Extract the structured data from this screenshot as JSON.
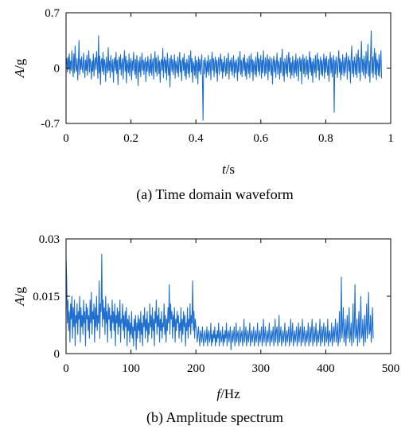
{
  "chart_data": [
    {
      "type": "line",
      "caption": "(a) Time domain waveform",
      "xlabel_italic": "t",
      "xlabel_unit": "/s",
      "ylabel_italic": "A",
      "ylabel_unit": "/g",
      "xlim": [
        0,
        1
      ],
      "ylim": [
        -0.7,
        0.7
      ],
      "x_ticks": [
        0,
        0.2,
        0.4,
        0.6,
        0.8,
        1
      ],
      "x_tick_labels": [
        "0",
        "0.2",
        "0.4",
        "0.6",
        "0.8",
        "1"
      ],
      "y_ticks": [
        -0.7,
        0,
        0.7
      ],
      "y_tick_labels": [
        "-0.7",
        "0",
        "0.7"
      ],
      "grid": false,
      "line_color": "#1f6fcf",
      "series": [
        {
          "x_start": 0,
          "x_step": 0.002,
          "values": [
            0.08,
            0.12,
            -0.05,
            0.14,
            -0.02,
            0.18,
            -0.07,
            0.09,
            -0.03,
            0.22,
            0.05,
            -0.11,
            0.18,
            -0.06,
            0.28,
            0.03,
            -0.04,
            0.12,
            -0.15,
            0.08,
            0.35,
            -0.08,
            0.11,
            -0.02,
            0.14,
            0.01,
            -0.06,
            0.19,
            0.05,
            -0.12,
            0.1,
            -0.03,
            0.16,
            -0.09,
            0.06,
            0.22,
            -0.05,
            0.12,
            0.03,
            -0.14,
            0.09,
            -0.04,
            0.18,
            -0.1,
            0.07,
            0.13,
            -0.02,
            0.21,
            0.06,
            -0.13,
            0.41,
            -0.06,
            0.15,
            -0.21,
            0.08,
            0.12,
            -0.04,
            0.2,
            -0.08,
            0.11,
            0.05,
            -0.17,
            0.14,
            0.02,
            -0.06,
            0.26,
            -0.03,
            0.09,
            -0.12,
            0.16,
            0.04,
            -0.05,
            0.11,
            -0.18,
            0.07,
            0.13,
            -0.03,
            0.2,
            -0.07,
            0.1,
            -0.21,
            0.06,
            0.14,
            -0.02,
            0.17,
            -0.09,
            0.05,
            0.12,
            -0.14,
            0.08,
            0.22,
            -0.04,
            0.15,
            -0.19,
            0.1,
            0.03,
            -0.06,
            0.18,
            -0.1,
            0.06,
            0.12,
            -0.15,
            0.09,
            -0.03,
            0.2,
            0.05,
            -0.08,
            0.11,
            -0.13,
            0.16,
            0.04,
            -0.22,
            0.09,
            -0.05,
            0.14,
            -0.11,
            0.07,
            0.19,
            -0.03,
            0.1,
            -0.08,
            0.06,
            0.13,
            -0.17,
            0.08,
            -0.04,
            0.15,
            0.02,
            -0.1,
            0.11,
            -0.06,
            0.18,
            -0.09,
            0.05,
            0.12,
            -0.14,
            0.07,
            0.21,
            -0.05,
            0.13,
            -0.1,
            0.04,
            0.16,
            -0.07,
            0.09,
            -0.18,
            0.06,
            0.11,
            -0.03,
            0.25,
            -0.12,
            0.08,
            0.14,
            -0.06,
            0.1,
            -0.15,
            0.19,
            0.03,
            -0.09,
            0.12,
            -0.24,
            0.07,
            0.16,
            -0.04,
            0.11,
            -0.08,
            0.05,
            0.17,
            -0.13,
            0.09,
            0.02,
            -0.06,
            0.14,
            -0.11,
            0.08,
            0.2,
            -0.05,
            0.1,
            -0.16,
            0.06,
            0.13,
            -0.03,
            0.18,
            -0.1,
            0.07,
            -0.14,
            0.11,
            0.04,
            -0.07,
            0.16,
            -0.12,
            0.09,
            0.22,
            -0.05,
            0.12,
            -0.18,
            0.08,
            0.03,
            -0.09,
            0.15,
            -0.13,
            0.1,
            0.06,
            -0.2,
            0.14,
            -0.04,
            0.11,
            -0.08,
            0.05,
            0.17,
            -0.1,
            -0.66,
            0.1,
            -0.07,
            0.13,
            0.04,
            -0.12,
            0.09,
            -0.05,
            0.16,
            -0.09,
            0.06,
            0.11,
            -0.15,
            0.08,
            0.2,
            -0.03,
            0.12,
            -0.11,
            0.07,
            0.14,
            -0.06,
            0.1,
            -0.17,
            0.05,
            0.13,
            -0.08,
            0.09,
            0.18,
            -0.04,
            0.11,
            -0.13,
            0.07,
            -0.05,
            0.15,
            0.03,
            -0.1,
            0.12,
            -0.07,
            0.08,
            0.19,
            -0.14,
            0.06,
            0.1,
            -0.04,
            0.13,
            -0.09,
            0.05,
            0.16,
            -0.12,
            0.08,
            -0.06,
            0.11,
            0.02,
            -0.16,
            0.14,
            -0.05,
            0.09,
            0.21,
            -0.08,
            0.1,
            -0.11,
            0.06,
            0.13,
            -0.03,
            0.17,
            -0.1,
            0.07,
            -0.14,
            0.12,
            0.04,
            -0.07,
            0.15,
            -0.12,
            0.08,
            0.18,
            -0.05,
            0.11,
            -0.16,
            0.09,
            0.03,
            -0.08,
            0.14,
            -0.11,
            0.06,
            0.2,
            -0.04,
            0.12,
            -0.09,
            0.07,
            0.16,
            -0.13,
            0.1,
            -0.06,
            0.22,
            0.05,
            -0.1,
            0.13,
            -0.07,
            0.08,
            0.17,
            -0.15,
            0.11,
            -0.04,
            0.14,
            0.02,
            -0.09,
            0.12,
            -0.2,
            0.07,
            0.15,
            -0.05,
            0.1,
            -0.12,
            0.06,
            0.19,
            -0.08,
            0.09,
            0.03,
            -0.14,
            0.13,
            -0.06,
            0.11,
            0.24,
            -0.1,
            0.08,
            -0.17,
            0.12,
            0.04,
            -0.07,
            0.16,
            -0.11,
            0.09,
            0.2,
            -0.05,
            0.13,
            -0.13,
            0.07,
            -0.09,
            0.15,
            0.03,
            -0.12,
            0.1,
            -0.06,
            0.18,
            -0.1,
            0.08,
            0.12,
            -0.16,
            0.06,
            0.14,
            -0.04,
            0.11,
            -0.2,
            0.09,
            0.17,
            -0.07,
            0.12,
            -0.11,
            0.05,
            0.15,
            -0.08,
            0.1,
            -0.14,
            0.07,
            0.21,
            -0.05,
            0.13,
            -0.09,
            0.08,
            -0.18,
            0.12,
            0.04,
            -0.06,
            0.16,
            -0.12,
            0.09,
            0.19,
            -0.03,
            0.11,
            -0.15,
            0.07,
            0.14,
            -0.08,
            0.1,
            -0.1,
            0.06,
            0.18,
            -0.13,
            0.12,
            -0.05,
            0.15,
            0.02,
            -0.09,
            0.11,
            -0.17,
            0.08,
            0.2,
            -0.06,
            0.13,
            -0.11,
            0.07,
            0.16,
            -0.56,
            0.1,
            -0.07,
            0.14,
            0.04,
            -0.12,
            0.09,
            0.22,
            -0.05,
            0.12,
            -0.15,
            0.08,
            -0.08,
            0.17,
            0.03,
            -0.1,
            0.13,
            -0.06,
            0.11,
            0.19,
            -0.14,
            0.07,
            0.15,
            -0.04,
            0.1,
            -0.19,
            0.12,
            0.28,
            -0.07,
            0.09,
            -0.11,
            0.14,
            0.05,
            -0.08,
            0.18,
            -0.12,
            0.1,
            0.23,
            -0.06,
            0.13,
            -0.16,
            0.08,
            0.34,
            -0.05,
            0.11,
            -0.09,
            0.15,
            0.04,
            -0.13,
            0.21,
            -0.07,
            0.12,
            0.3,
            -0.1,
            0.09,
            -0.18,
            0.16,
            0.47,
            -0.06,
            0.14,
            -0.12,
            0.1,
            0.25,
            -0.08,
            0.19,
            -0.15,
            0.11,
            0.05,
            -0.09,
            0.17,
            -0.11,
            0.08,
            0.22,
            -0.13
          ]
        }
      ]
    },
    {
      "type": "line",
      "caption": "(b) Amplitude spectrum",
      "xlabel_italic": "f",
      "xlabel_unit": "/Hz",
      "ylabel_italic": "A",
      "ylabel_unit": "/g",
      "xlim": [
        0,
        500
      ],
      "ylim": [
        0,
        0.03
      ],
      "x_ticks": [
        0,
        100,
        200,
        300,
        400,
        500
      ],
      "x_tick_labels": [
        "0",
        "100",
        "200",
        "300",
        "400",
        "500"
      ],
      "y_ticks": [
        0,
        0.015,
        0.03
      ],
      "y_tick_labels": [
        "0",
        "0.015",
        "0.03"
      ],
      "grid": false,
      "line_color": "#1f6fcf",
      "series": [
        {
          "x_start": 0,
          "x_step": 1,
          "values": [
            0.025,
            0.019,
            0.008,
            0.014,
            0.006,
            0.011,
            0.003,
            0.013,
            0.009,
            0.015,
            0.004,
            0.012,
            0.007,
            0.014,
            0.002,
            0.01,
            0.008,
            0.013,
            0.005,
            0.011,
            0.009,
            0.015,
            0.003,
            0.012,
            0.007,
            0.01,
            0.005,
            0.014,
            0.008,
            0.011,
            0.002,
            0.013,
            0.009,
            0.012,
            0.006,
            0.01,
            0.004,
            0.014,
            0.008,
            0.016,
            0.005,
            0.011,
            0.009,
            0.013,
            0.003,
            0.012,
            0.007,
            0.015,
            0.006,
            0.01,
            0.008,
            0.019,
            0.004,
            0.013,
            0.011,
            0.026,
            0.007,
            0.014,
            0.009,
            0.012,
            0.005,
            0.015,
            0.008,
            0.011,
            0.003,
            0.013,
            0.009,
            0.012,
            0.006,
            0.01,
            0.004,
            0.014,
            0.008,
            0.011,
            0.006,
            0.013,
            0.002,
            0.01,
            0.008,
            0.012,
            0.005,
            0.011,
            0.007,
            0.014,
            0.003,
            0.009,
            0.008,
            0.013,
            0.006,
            0.01,
            0.004,
            0.011,
            0.007,
            0.012,
            0.002,
            0.009,
            0.006,
            0.01,
            0.003,
            0.008,
            0.005,
            0.011,
            0.004,
            0.007,
            0.002,
            0.009,
            0.006,
            0.01,
            0.001,
            0.008,
            0.004,
            0.01,
            0.006,
            0.009,
            0.003,
            0.011,
            0.005,
            0.008,
            0.002,
            0.01,
            0.007,
            0.012,
            0.004,
            0.009,
            0.006,
            0.011,
            0.003,
            0.008,
            0.005,
            0.013,
            0.007,
            0.01,
            0.004,
            0.012,
            0.006,
            0.009,
            0.002,
            0.011,
            0.008,
            0.014,
            0.005,
            0.01,
            0.007,
            0.012,
            0.003,
            0.009,
            0.006,
            0.011,
            0.004,
            0.008,
            0.007,
            0.013,
            0.005,
            0.01,
            0.003,
            0.009,
            0.006,
            0.012,
            0.008,
            0.018,
            0.005,
            0.013,
            0.009,
            0.011,
            0.004,
            0.01,
            0.007,
            0.012,
            0.003,
            0.009,
            0.006,
            0.011,
            0.008,
            0.01,
            0.004,
            0.008,
            0.006,
            0.012,
            0.003,
            0.009,
            0.005,
            0.011,
            0.007,
            0.01,
            0.002,
            0.008,
            0.006,
            0.012,
            0.004,
            0.009,
            0.007,
            0.013,
            0.005,
            0.01,
            0.008,
            0.019,
            0.006,
            0.011,
            0.004,
            0.009,
            0.007,
            0.006,
            0.003,
            0.005,
            0.007,
            0.004,
            0.002,
            0.006,
            0.005,
            0.003,
            0.007,
            0.004,
            0.002,
            0.005,
            0.006,
            0.003,
            0.004,
            0.007,
            0.002,
            0.005,
            0.006,
            0.003,
            0.004,
            0.008,
            0.002,
            0.005,
            0.003,
            0.006,
            0.004,
            0.007,
            0.002,
            0.005,
            0.003,
            0.006,
            0.004,
            0.008,
            0.002,
            0.005,
            0.006,
            0.003,
            0.004,
            0.007,
            0.002,
            0.005,
            0.003,
            0.006,
            0.004,
            0.008,
            0.002,
            0.005,
            0.006,
            0.003,
            0.005,
            0.007,
            0.001,
            0.004,
            0.006,
            0.003,
            0.005,
            0.007,
            0.002,
            0.004,
            0.008,
            0.003,
            0.005,
            0.006,
            0.002,
            0.004,
            0.007,
            0.003,
            0.005,
            0.006,
            0.002,
            0.004,
            0.009,
            0.003,
            0.005,
            0.007,
            0.002,
            0.004,
            0.006,
            0.003,
            0.005,
            0.008,
            0.002,
            0.004,
            0.006,
            0.003,
            0.005,
            0.007,
            0.002,
            0.004,
            0.006,
            0.003,
            0.005,
            0.008,
            0.002,
            0.004,
            0.006,
            0.003,
            0.005,
            0.007,
            0.002,
            0.004,
            0.009,
            0.003,
            0.005,
            0.007,
            0.002,
            0.004,
            0.006,
            0.003,
            0.005,
            0.008,
            0.002,
            0.004,
            0.006,
            0.003,
            0.005,
            0.007,
            0.002,
            0.004,
            0.009,
            0.003,
            0.006,
            0.007,
            0.002,
            0.004,
            0.01,
            0.003,
            0.005,
            0.007,
            0.002,
            0.004,
            0.006,
            0.003,
            0.005,
            0.008,
            0.002,
            0.004,
            0.006,
            0.003,
            0.005,
            0.007,
            0.002,
            0.004,
            0.009,
            0.003,
            0.005,
            0.008,
            0.002,
            0.004,
            0.006,
            0.003,
            0.005,
            0.007,
            0.002,
            0.004,
            0.008,
            0.003,
            0.006,
            0.007,
            0.002,
            0.004,
            0.009,
            0.003,
            0.005,
            0.007,
            0.002,
            0.004,
            0.006,
            0.003,
            0.005,
            0.008,
            0.002,
            0.004,
            0.007,
            0.003,
            0.006,
            0.009,
            0.002,
            0.004,
            0.007,
            0.003,
            0.005,
            0.008,
            0.002,
            0.004,
            0.006,
            0.003,
            0.005,
            0.009,
            0.002,
            0.004,
            0.007,
            0.003,
            0.006,
            0.008,
            0.002,
            0.005,
            0.007,
            0.003,
            0.004,
            0.009,
            0.002,
            0.005,
            0.006,
            0.003,
            0.004,
            0.008,
            0.002,
            0.005,
            0.007,
            0.003,
            0.006,
            0.009,
            0.003,
            0.005,
            0.008,
            0.002,
            0.004,
            0.011,
            0.003,
            0.006,
            0.02,
            0.004,
            0.007,
            0.012,
            0.003,
            0.005,
            0.009,
            0.002,
            0.006,
            0.01,
            0.004,
            0.007,
            0.012,
            0.003,
            0.005,
            0.008,
            0.002,
            0.006,
            0.013,
            0.003,
            0.007,
            0.018,
            0.004,
            0.005,
            0.009,
            0.002,
            0.006,
            0.011,
            0.003,
            0.007,
            0.015,
            0.004,
            0.005,
            0.009,
            0.002,
            0.006,
            0.01,
            0.003,
            0.007,
            0.013,
            0.004,
            0.008,
            0.016,
            0.005,
            0.006,
            0.01,
            0.003,
            0.007,
            0.012,
            0.004
          ]
        }
      ]
    }
  ]
}
